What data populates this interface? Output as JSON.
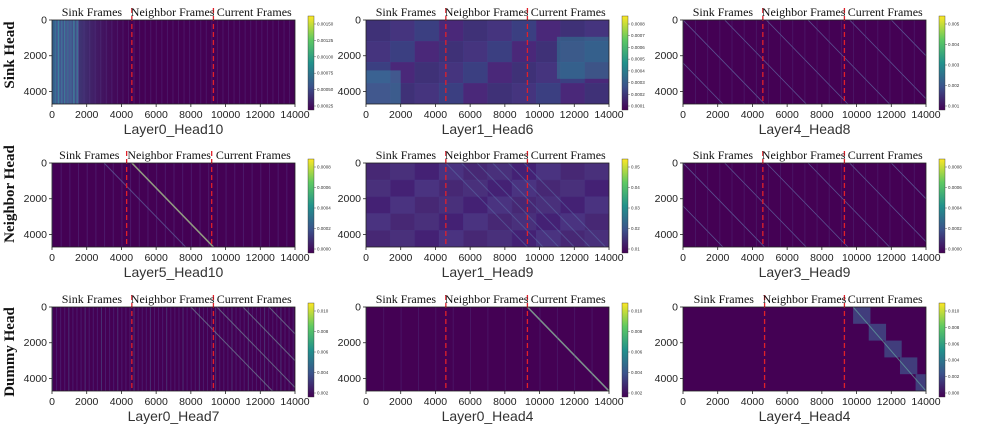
{
  "figure": {
    "row_labels": [
      "Sink Head",
      "Neighbor Head",
      "Dummy Head"
    ],
    "segment_labels": [
      "Sink Frames",
      "Neighbor Frames",
      "Current Frames"
    ],
    "x_ticks": [
      "0",
      "2000",
      "4000",
      "6000",
      "8000",
      "10000",
      "12000",
      "14000"
    ],
    "y_ticks": [
      "0",
      "2000",
      "4000"
    ],
    "colors": {
      "background": "#440154",
      "mid": "#3b528b",
      "teal": "#21918c",
      "green": "#5ec962",
      "yellow": "#fde725",
      "divider": "#e0202a"
    }
  },
  "chart_data": [
    {
      "type": "heatmap",
      "title": "Layer0_Head10",
      "pattern": "sink",
      "x_range": [
        0,
        14000
      ],
      "y_range": [
        0,
        4700
      ],
      "divider_x": [
        4600,
        9300
      ],
      "colorbar_ticks": [
        "0.00150",
        "0.00125",
        "0.00100",
        "0.00075",
        "0.00050",
        "0.00025"
      ]
    },
    {
      "type": "heatmap",
      "title": "Layer1_Head6",
      "pattern": "blocks",
      "x_range": [
        0,
        14000
      ],
      "y_range": [
        0,
        4700
      ],
      "divider_x": [
        4600,
        9300
      ],
      "colorbar_ticks": [
        "0.0008",
        "0.0007",
        "0.0006",
        "0.0005",
        "0.0004",
        "0.0003",
        "0.0002",
        "0.0001"
      ]
    },
    {
      "type": "heatmap",
      "title": "Layer4_Head8",
      "pattern": "diagonals",
      "x_range": [
        0,
        14000
      ],
      "y_range": [
        0,
        4700
      ],
      "divider_x": [
        4600,
        9300
      ],
      "colorbar_ticks": [
        "0.005",
        "0.004",
        "0.003",
        "0.002",
        "0.001"
      ]
    },
    {
      "type": "heatmap",
      "title": "Layer5_Head10",
      "pattern": "neighbor",
      "x_range": [
        0,
        14000
      ],
      "y_range": [
        0,
        4700
      ],
      "divider_x": [
        4300,
        9200
      ],
      "colorbar_ticks": [
        "0.0008",
        "0.0006",
        "0.0004",
        "0.0002",
        "0.0000"
      ]
    },
    {
      "type": "heatmap",
      "title": "Layer1_Head9",
      "pattern": "neighbor-blocks",
      "x_range": [
        0,
        14000
      ],
      "y_range": [
        0,
        4700
      ],
      "divider_x": [
        4600,
        9300
      ],
      "colorbar_ticks": [
        "0.05",
        "0.04",
        "0.03",
        "0.02",
        "0.01"
      ]
    },
    {
      "type": "heatmap",
      "title": "Layer3_Head9",
      "pattern": "diagonals",
      "x_range": [
        0,
        14000
      ],
      "y_range": [
        0,
        4700
      ],
      "divider_x": [
        4600,
        9300
      ],
      "colorbar_ticks": [
        "0.0008",
        "0.0006",
        "0.0004",
        "0.0002",
        "0.0000"
      ]
    },
    {
      "type": "heatmap",
      "title": "Layer0_Head7",
      "pattern": "dummy",
      "x_range": [
        0,
        14000
      ],
      "y_range": [
        0,
        4700
      ],
      "divider_x": [
        4600,
        9300
      ],
      "colorbar_ticks": [
        "0.010",
        "0.008",
        "0.006",
        "0.004",
        "0.002"
      ]
    },
    {
      "type": "heatmap",
      "title": "Layer0_Head4",
      "pattern": "current-diag",
      "x_range": [
        0,
        14000
      ],
      "y_range": [
        0,
        4700
      ],
      "divider_x": [
        4600,
        9300
      ],
      "colorbar_ticks": [
        "0.010",
        "0.008",
        "0.006",
        "0.004",
        "0.002"
      ]
    },
    {
      "type": "heatmap",
      "title": "Layer4_Head4",
      "pattern": "current-blocks",
      "x_range": [
        0,
        14000
      ],
      "y_range": [
        0,
        4700
      ],
      "divider_x": [
        4700,
        9300
      ],
      "colorbar_ticks": [
        "0.010",
        "0.008",
        "0.006",
        "0.004",
        "0.002",
        "0.000"
      ]
    }
  ]
}
